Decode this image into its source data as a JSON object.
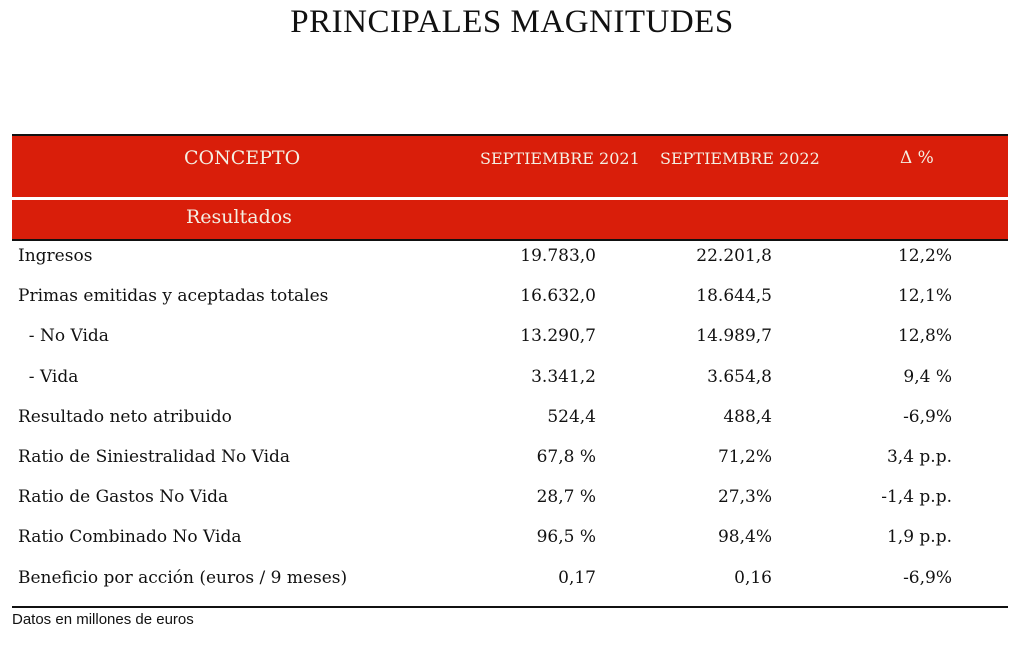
{
  "title": "PRINCIPALES MAGNITUDES",
  "table": {
    "header": {
      "concepto": "CONCEPTO",
      "sep2021": "SEPTIEMBRE 2021",
      "sep2022": "SEPTIEMBRE 2022",
      "delta": "Δ %"
    },
    "section": "Resultados",
    "rows": [
      {
        "label": "Ingresos",
        "v2021": "19.783,0",
        "v2022": "22.201,8",
        "delta": "12,2%"
      },
      {
        "label": "Primas emitidas y aceptadas totales",
        "v2021": "16.632,0",
        "v2022": "18.644,5",
        "delta": "12,1%"
      },
      {
        "label": "  - No Vida",
        "v2021": "13.290,7",
        "v2022": "14.989,7",
        "delta": "12,8%"
      },
      {
        "label": "  - Vida",
        "v2021": "3.341,2",
        "v2022": "3.654,8",
        "delta": "9,4 %"
      },
      {
        "label": "Resultado neto atribuido",
        "v2021": "524,4",
        "v2022": "488,4",
        "delta": "-6,9%"
      },
      {
        "label": "Ratio de Siniestralidad No Vida",
        "v2021": "67,8 %",
        "v2022": "71,2%",
        "delta": "3,4 p.p."
      },
      {
        "label": "Ratio de Gastos No Vida",
        "v2021": "28,7 %",
        "v2022": "27,3%",
        "delta": "-1,4 p.p."
      },
      {
        "label": "Ratio Combinado No Vida",
        "v2021": "96,5 %",
        "v2022": "98,4%",
        "delta": "1,9 p.p."
      },
      {
        "label": "Beneficio por acción (euros / 9 meses)",
        "v2021": "0,17",
        "v2022": "0,16",
        "delta": "-6,9%"
      }
    ]
  },
  "footnote": "Datos en millones de euros",
  "colors": {
    "header_band": "#d91e0a",
    "header_text": "#f4efe3"
  }
}
